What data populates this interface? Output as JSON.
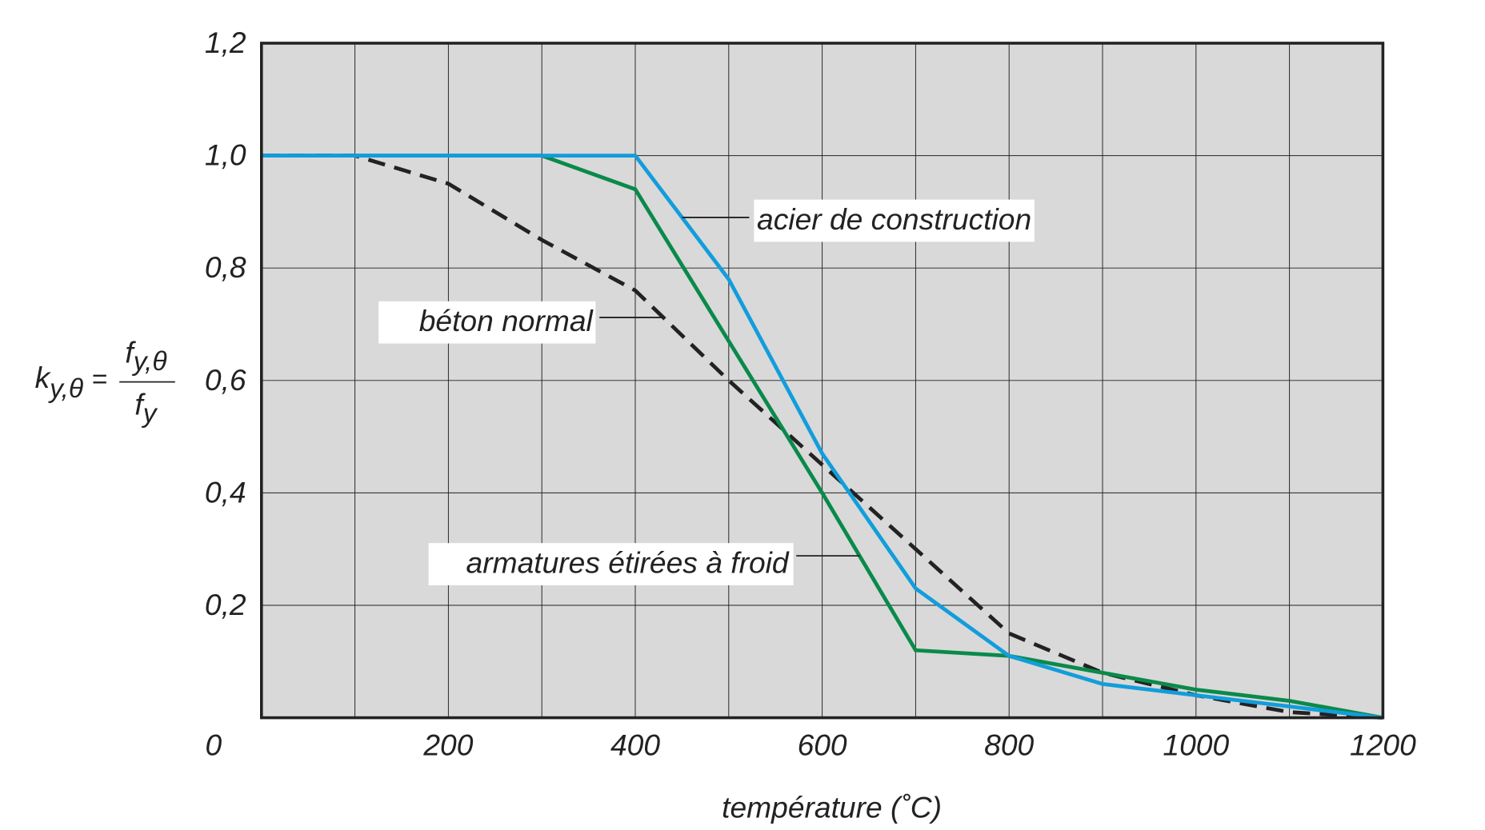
{
  "chart_data": {
    "type": "line",
    "title": "",
    "xlabel": "température (˚C)",
    "ylabel": {
      "lhs": "k",
      "lhs_sub": "y,θ",
      "eq": "=",
      "num": "f",
      "num_sub": "y,θ",
      "den": "f",
      "den_sub": "y"
    },
    "xlim": [
      0,
      1200
    ],
    "ylim": [
      0,
      1.2
    ],
    "grid": true,
    "x_ticks": [
      0,
      100,
      200,
      300,
      400,
      500,
      600,
      700,
      800,
      900,
      1000,
      1100,
      1200
    ],
    "x_tick_labels": [
      "0",
      "",
      "200",
      "",
      "400",
      "",
      "600",
      "",
      "800",
      "",
      "1000",
      "",
      "1200"
    ],
    "y_ticks": [
      0,
      0.2,
      0.4,
      0.6,
      0.8,
      1.0,
      1.2
    ],
    "y_tick_labels": [
      "",
      "0,2",
      "0,4",
      "0,6",
      "0,8",
      "1,0",
      "1,2"
    ],
    "x": [
      0,
      100,
      200,
      300,
      400,
      500,
      600,
      700,
      800,
      900,
      1000,
      1100,
      1200
    ],
    "series": [
      {
        "name": "béton normal",
        "color": "#222222",
        "dash": true,
        "values": [
          1.0,
          1.0,
          0.95,
          0.85,
          0.76,
          0.6,
          0.45,
          0.3,
          0.15,
          0.08,
          0.04,
          0.01,
          0.0
        ]
      },
      {
        "name": "armatures étirées à froid",
        "color": "#0a8a4a",
        "dash": false,
        "values": [
          1.0,
          1.0,
          1.0,
          1.0,
          0.94,
          0.67,
          0.4,
          0.12,
          0.11,
          0.08,
          0.05,
          0.03,
          0.0
        ]
      },
      {
        "name": "acier de construction",
        "color": "#129ddb",
        "dash": false,
        "values": [
          1.0,
          1.0,
          1.0,
          1.0,
          1.0,
          0.78,
          0.47,
          0.23,
          0.11,
          0.06,
          0.04,
          0.02,
          0.0
        ]
      }
    ],
    "annotations": [
      {
        "text": "acier de construction",
        "series": "acier de construction",
        "at_x": 450
      },
      {
        "text": "béton normal",
        "series": "béton normal",
        "at_x": 430
      },
      {
        "text": "armatures étirées à froid",
        "series": "armatures étirées à froid",
        "at_x": 640
      }
    ],
    "colors": {
      "plot_background": "#d9d9d9",
      "grid": "#222222",
      "frame": "#222222"
    }
  }
}
